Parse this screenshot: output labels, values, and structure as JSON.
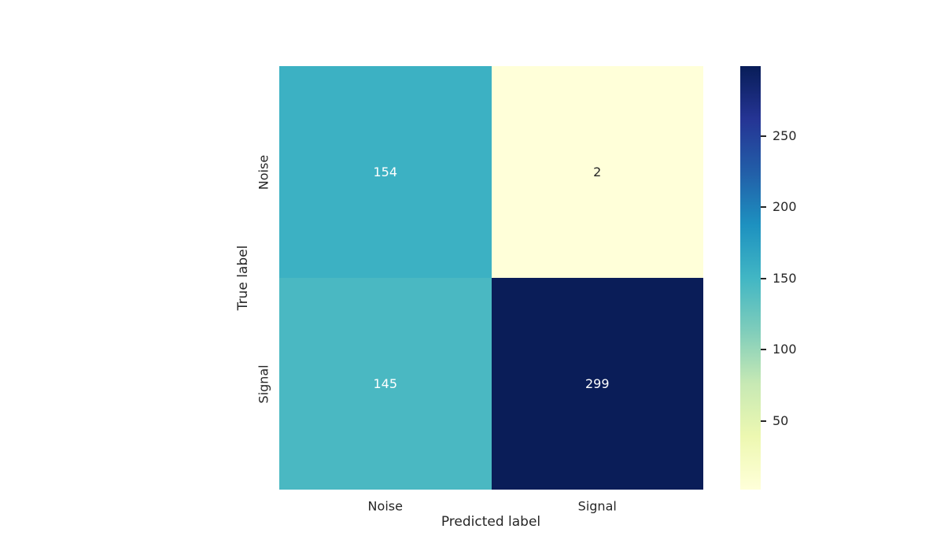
{
  "figure": {
    "background": "#ffffff"
  },
  "chart_data": {
    "type": "heatmap",
    "title": "",
    "xlabel": "Predicted label",
    "ylabel": "True label",
    "x_categories": [
      "Noise",
      "Signal"
    ],
    "y_categories": [
      "Noise",
      "Signal"
    ],
    "values": [
      [
        154,
        2
      ],
      [
        145,
        299
      ]
    ],
    "cell_colors": [
      [
        "#3cb1c3",
        "#ffffd9"
      ],
      [
        "#4ab8c2",
        "#0a1d58"
      ]
    ],
    "cell_text_colors": [
      [
        "#ffffff",
        "#262626"
      ],
      [
        "#ffffff",
        "#ffffff"
      ]
    ],
    "vmin": 2,
    "vmax": 299,
    "grid": false,
    "legend": "colorbar-right",
    "colorbar": {
      "colormap_name": "YlGnBu",
      "gradient_stops_bottom_to_top": [
        "#ffffd9",
        "#edf8b1",
        "#c7e9b4",
        "#7fcdbb",
        "#41b6c4",
        "#1d91c0",
        "#225ea8",
        "#253494",
        "#081d58"
      ],
      "ticks": [
        50,
        100,
        150,
        200,
        250
      ]
    },
    "tick_color": "#262626"
  }
}
